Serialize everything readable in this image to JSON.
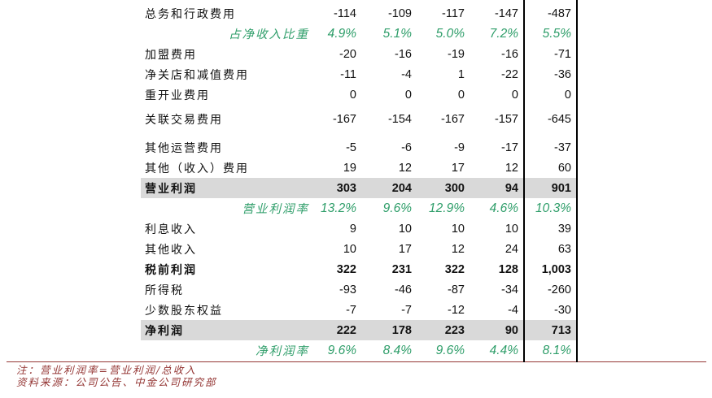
{
  "table": {
    "rows": [
      {
        "label": "总务和行政费用",
        "type": "normal",
        "values": [
          "-114",
          "-109",
          "-117",
          "-147",
          "-487"
        ]
      },
      {
        "label": "占净收入比重",
        "type": "percent",
        "values": [
          "4.9%",
          "5.1%",
          "5.0%",
          "7.2%",
          "5.5%"
        ]
      },
      {
        "label": "加盟费用",
        "type": "normal",
        "values": [
          "-20",
          "-16",
          "-19",
          "-16",
          "-71"
        ]
      },
      {
        "label": "净关店和减值费用",
        "type": "normal",
        "values": [
          "-11",
          "-4",
          "1",
          "-22",
          "-36"
        ]
      },
      {
        "label": "重开业费用",
        "type": "normal",
        "values": [
          "0",
          "0",
          "0",
          "0",
          "0"
        ]
      },
      {
        "label": "关联交易费用",
        "type": "normal",
        "gap": "sm",
        "values": [
          "-167",
          "-154",
          "-167",
          "-157",
          "-645"
        ]
      },
      {
        "label": "其他运营费用",
        "type": "normal",
        "gap": "md",
        "values": [
          "-5",
          "-6",
          "-9",
          "-17",
          "-37"
        ]
      },
      {
        "label": "其他（收入）费用",
        "type": "normal",
        "values": [
          "19",
          "12",
          "17",
          "12",
          "60"
        ]
      },
      {
        "label": "营业利润",
        "type": "highlight",
        "values": [
          "303",
          "204",
          "300",
          "94",
          "901"
        ]
      },
      {
        "label": "营业利润率",
        "type": "percent",
        "values": [
          "13.2%",
          "9.6%",
          "12.9%",
          "4.6%",
          "10.3%"
        ]
      },
      {
        "label": "利息收入",
        "type": "normal",
        "values": [
          "9",
          "10",
          "10",
          "10",
          "39"
        ]
      },
      {
        "label": "其他收入",
        "type": "normal",
        "values": [
          "10",
          "17",
          "12",
          "24",
          "63"
        ]
      },
      {
        "label": "税前利润",
        "type": "bold",
        "values": [
          "322",
          "231",
          "322",
          "128",
          "1,003"
        ]
      },
      {
        "label": "所得税",
        "type": "normal",
        "values": [
          "-93",
          "-46",
          "-87",
          "-34",
          "-260"
        ]
      },
      {
        "label": "少数股东权益",
        "type": "normal",
        "values": [
          "-7",
          "-7",
          "-12",
          "-4",
          "-30"
        ]
      },
      {
        "label": "净利润",
        "type": "highlight",
        "values": [
          "222",
          "178",
          "223",
          "90",
          "713"
        ]
      },
      {
        "label": "净利润率",
        "type": "percent",
        "values": [
          "9.6%",
          "8.4%",
          "9.6%",
          "4.4%",
          "8.1%"
        ]
      }
    ]
  },
  "footer": {
    "notes": [
      "注：营业利润率=营业利润/总收入",
      "资料来源：公司公告、中金公司研究部"
    ]
  },
  "colors": {
    "percent_green": "#2f9e6a",
    "highlight_bg": "#d9d9d9",
    "note_red": "#943634",
    "rule_red": "#953735",
    "divider_black": "#000000"
  }
}
